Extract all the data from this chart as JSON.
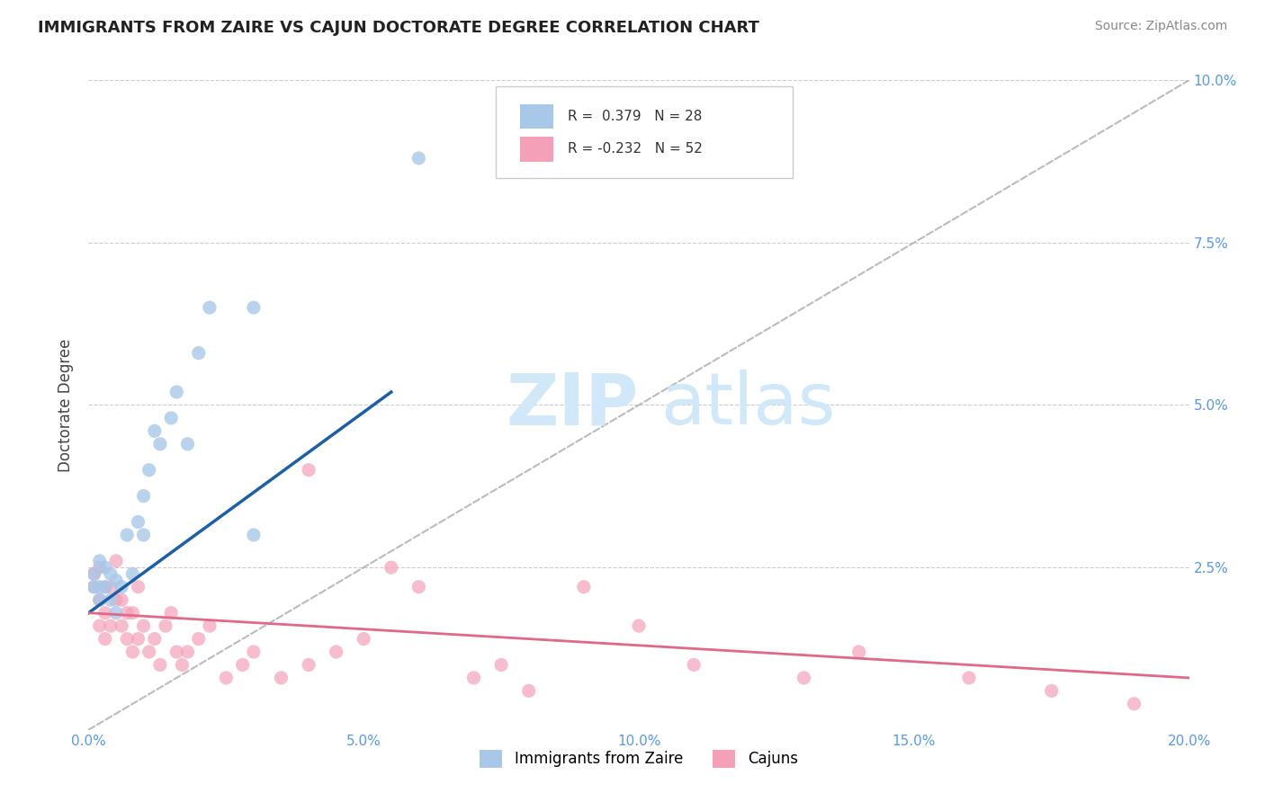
{
  "title": "IMMIGRANTS FROM ZAIRE VS CAJUN DOCTORATE DEGREE CORRELATION CHART",
  "source_text": "Source: ZipAtlas.com",
  "xlabel": "",
  "ylabel": "Doctorate Degree",
  "xlim": [
    0.0,
    0.2
  ],
  "ylim": [
    0.0,
    0.1
  ],
  "xtick_labels": [
    "0.0%",
    "",
    "5.0%",
    "",
    "10.0%",
    "",
    "15.0%",
    "",
    "20.0%"
  ],
  "xtick_vals": [
    0.0,
    0.025,
    0.05,
    0.075,
    0.1,
    0.125,
    0.15,
    0.175,
    0.2
  ],
  "ytick_labels_right": [
    "",
    "2.5%",
    "5.0%",
    "7.5%",
    "10.0%"
  ],
  "ytick_vals": [
    0.0,
    0.025,
    0.05,
    0.075,
    0.1
  ],
  "legend_r_blue": "0.379",
  "legend_n_blue": "28",
  "legend_r_pink": "-0.232",
  "legend_n_pink": "52",
  "blue_color": "#a8c8e8",
  "pink_color": "#f4a0b8",
  "blue_line_color": "#1a5fa8",
  "pink_line_color": "#e06888",
  "ref_line_color": "#bbbbbb",
  "background_color": "#ffffff",
  "grid_color": "#cccccc",
  "title_color": "#222222",
  "axis_label_color": "#5599ee",
  "watermark_color": "#d0e8f8",
  "blue_scatter_x": [
    0.001,
    0.001,
    0.002,
    0.002,
    0.002,
    0.003,
    0.003,
    0.004,
    0.004,
    0.005,
    0.005,
    0.006,
    0.007,
    0.008,
    0.009,
    0.01,
    0.01,
    0.011,
    0.012,
    0.013,
    0.015,
    0.016,
    0.018,
    0.02,
    0.022,
    0.03,
    0.03,
    0.06
  ],
  "blue_scatter_y": [
    0.022,
    0.024,
    0.02,
    0.022,
    0.026,
    0.022,
    0.025,
    0.024,
    0.02,
    0.018,
    0.023,
    0.022,
    0.03,
    0.024,
    0.032,
    0.03,
    0.036,
    0.04,
    0.046,
    0.044,
    0.048,
    0.052,
    0.044,
    0.058,
    0.065,
    0.03,
    0.065,
    0.088
  ],
  "pink_scatter_x": [
    0.001,
    0.001,
    0.002,
    0.002,
    0.002,
    0.003,
    0.003,
    0.003,
    0.004,
    0.004,
    0.005,
    0.005,
    0.006,
    0.006,
    0.007,
    0.007,
    0.008,
    0.008,
    0.009,
    0.009,
    0.01,
    0.011,
    0.012,
    0.013,
    0.014,
    0.015,
    0.016,
    0.017,
    0.018,
    0.02,
    0.022,
    0.025,
    0.028,
    0.03,
    0.035,
    0.04,
    0.04,
    0.045,
    0.05,
    0.055,
    0.06,
    0.07,
    0.075,
    0.08,
    0.09,
    0.1,
    0.11,
    0.13,
    0.14,
    0.16,
    0.175,
    0.19
  ],
  "pink_scatter_y": [
    0.022,
    0.024,
    0.016,
    0.02,
    0.025,
    0.018,
    0.022,
    0.014,
    0.022,
    0.016,
    0.02,
    0.026,
    0.016,
    0.02,
    0.014,
    0.018,
    0.012,
    0.018,
    0.014,
    0.022,
    0.016,
    0.012,
    0.014,
    0.01,
    0.016,
    0.018,
    0.012,
    0.01,
    0.012,
    0.014,
    0.016,
    0.008,
    0.01,
    0.012,
    0.008,
    0.04,
    0.01,
    0.012,
    0.014,
    0.025,
    0.022,
    0.008,
    0.01,
    0.006,
    0.022,
    0.016,
    0.01,
    0.008,
    0.012,
    0.008,
    0.006,
    0.004
  ],
  "blue_trend_x": [
    0.0,
    0.055
  ],
  "blue_trend_y": [
    0.018,
    0.052
  ],
  "pink_trend_x": [
    0.0,
    0.2
  ],
  "pink_trend_y": [
    0.018,
    0.008
  ],
  "figsize": [
    14.06,
    8.92
  ],
  "dpi": 100
}
